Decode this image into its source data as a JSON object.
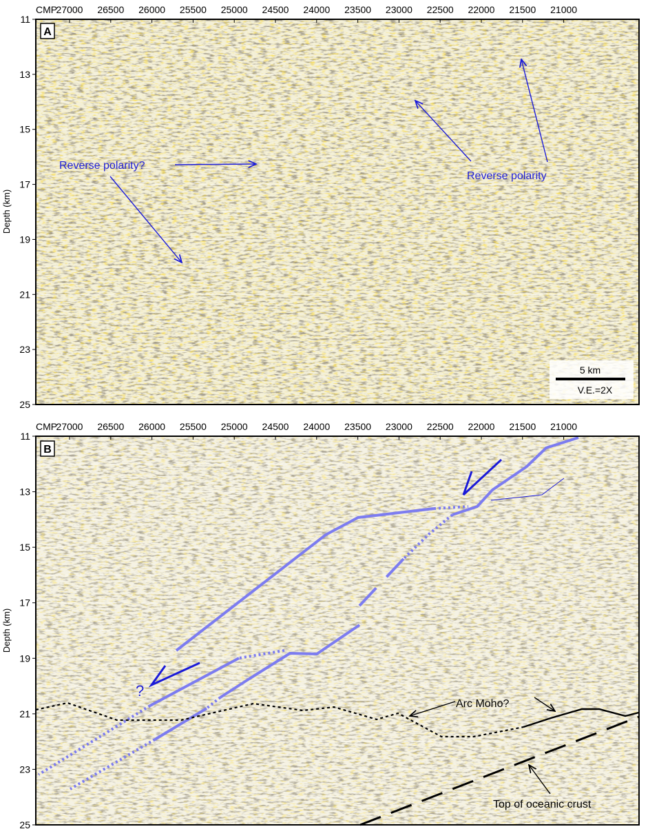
{
  "panels": [
    {
      "letter": "A",
      "cmp_prefix": "CMP",
      "cmp_ticks": [
        "27000",
        "26500",
        "26000",
        "25500",
        "25000",
        "24500",
        "24000",
        "23500",
        "23000",
        "22500",
        "22000",
        "21500",
        "21000"
      ],
      "depth_ticks": [
        "11",
        "13",
        "15",
        "17",
        "19",
        "21",
        "23",
        "25"
      ],
      "ylabel": "Depth (km)",
      "annotations": {
        "reverse_polarity_q": "Reverse polarity?",
        "reverse_polarity": "Reverse polarity"
      },
      "scale_bar": {
        "length_label": "5 km",
        "ve_label": "V.E.=2X"
      }
    },
    {
      "letter": "B",
      "cmp_prefix": "CMP",
      "cmp_ticks": [
        "27000",
        "26500",
        "26000",
        "25500",
        "25000",
        "24500",
        "24000",
        "23500",
        "23000",
        "22500",
        "22000",
        "21500",
        "21000"
      ],
      "depth_ticks": [
        "11",
        "13",
        "15",
        "17",
        "19",
        "21",
        "23",
        "25"
      ],
      "ylabel": "Depth (km)",
      "annotations": {
        "arc_moho": "Arc Moho?",
        "oceanic_crust": "Top of oceanic crust",
        "question": "?"
      }
    }
  ],
  "colors": {
    "seismic_bg": "#f4f0d8",
    "interpretation_blue": "#7c7cf0",
    "arrow_blue": "#1a1ad8",
    "text_blue": "#1f1fd6"
  }
}
